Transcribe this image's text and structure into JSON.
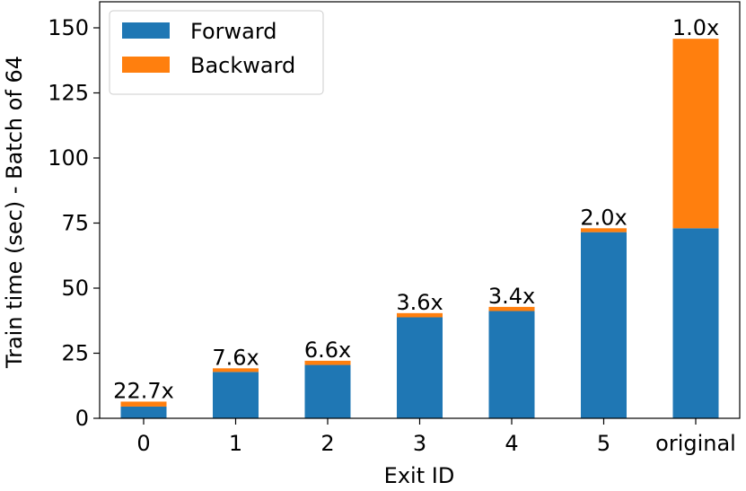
{
  "chart_data": {
    "type": "bar",
    "stacked": true,
    "categories": [
      "0",
      "1",
      "2",
      "3",
      "4",
      "5",
      "original"
    ],
    "series": [
      {
        "name": "Forward",
        "color": "#1f77b4",
        "values": [
          4.5,
          17.8,
          20.5,
          38.8,
          41.2,
          71.5,
          73.0
        ]
      },
      {
        "name": "Backward",
        "color": "#ff7f0e",
        "values": [
          1.9,
          1.4,
          1.6,
          1.6,
          1.6,
          1.5,
          72.8
        ]
      }
    ],
    "bar_labels": [
      "22.7x",
      "7.6x",
      "6.6x",
      "3.6x",
      "3.4x",
      "2.0x",
      "1.0x"
    ],
    "xlabel": "Exit ID",
    "ylabel": "Train time (sec) - Batch of 64",
    "ylim": [
      0,
      160
    ],
    "yticks": [
      0,
      25,
      50,
      75,
      100,
      125,
      150
    ],
    "grid": false,
    "legend_position": "top-left"
  }
}
